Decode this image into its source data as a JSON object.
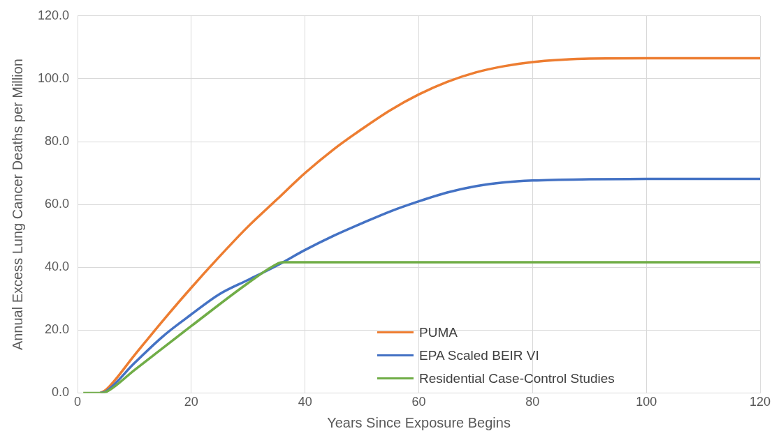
{
  "chart_data": {
    "type": "line",
    "xlabel": "Years Since Exposure Begins",
    "ylabel": "Annual Excess Lung Cancer Deaths per Million",
    "xlim": [
      0,
      120
    ],
    "xticks": [
      0,
      20,
      40,
      60,
      80,
      100,
      120
    ],
    "ylim": [
      0,
      120
    ],
    "yticks": [
      {
        "value": 0,
        "label": "0.0"
      },
      {
        "value": 20,
        "label": "20.0"
      },
      {
        "value": 40,
        "label": "40.0"
      },
      {
        "value": 60,
        "label": "60.0"
      },
      {
        "value": 80,
        "label": "80.0"
      },
      {
        "value": 100,
        "label": "100.0"
      },
      {
        "value": 120,
        "label": "120.0"
      }
    ],
    "grid": true,
    "legend": "bottom",
    "marker": "none",
    "line_style": "solid",
    "series": [
      {
        "name": "PUMA",
        "color": "#ed7d31",
        "x": [
          4,
          5,
          10,
          15,
          20,
          25,
          30,
          35,
          40,
          45,
          50,
          55,
          60,
          65,
          70,
          75,
          80,
          85,
          90,
          100,
          110,
          120
        ],
        "values": [
          0,
          1,
          12,
          23,
          33.5,
          43.5,
          53,
          61.5,
          70,
          77.5,
          84,
          90,
          95,
          99,
          102,
          104,
          105.3,
          106,
          106.4,
          106.5,
          106.5,
          106.5
        ]
      },
      {
        "name": "EPA Scaled BEIR VI",
        "color": "#4472c4",
        "x": [
          4,
          5,
          10,
          15,
          20,
          25,
          30,
          35,
          40,
          45,
          50,
          55,
          60,
          65,
          70,
          75,
          80,
          90,
          100,
          110,
          120
        ],
        "values": [
          0,
          0.5,
          9.5,
          18,
          25,
          31.5,
          36,
          40.5,
          45.5,
          50,
          54,
          57.8,
          61,
          63.8,
          65.8,
          67,
          67.6,
          68,
          68.1,
          68.1,
          68.1
        ]
      },
      {
        "name": "Residential Case-Control Studies",
        "color": "#70ad47",
        "x": [
          1,
          2,
          3,
          4,
          5,
          10,
          20,
          30,
          35,
          36,
          50,
          80,
          100,
          120
        ],
        "values": [
          0,
          0,
          0,
          0,
          0.3,
          7.3,
          21.3,
          35,
          41,
          41.6,
          41.6,
          41.6,
          41.6,
          41.6
        ]
      }
    ]
  }
}
